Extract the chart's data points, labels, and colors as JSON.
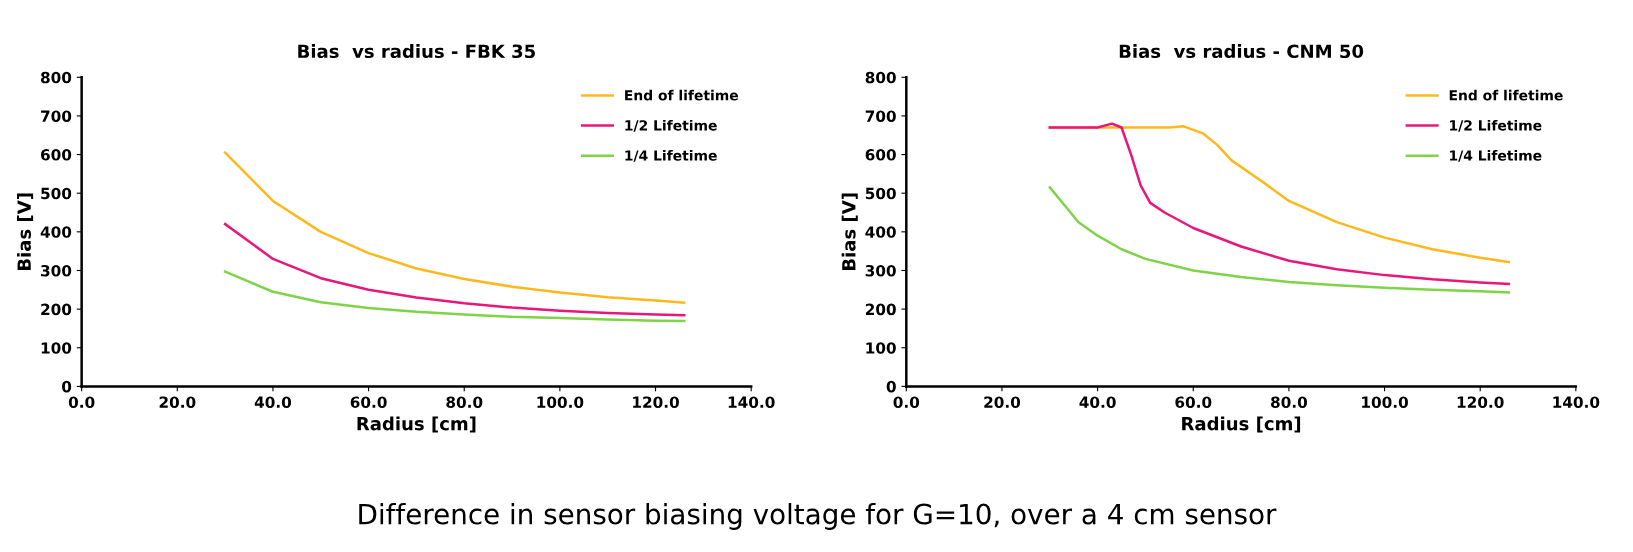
{
  "chart_data": [
    {
      "type": "line",
      "title": "Bias  vs radius - FBK 35",
      "xlabel": "Radius [cm]",
      "ylabel": "Bias [V]",
      "xlim": [
        0,
        140
      ],
      "xticks": [
        {
          "value": 0,
          "label": "0.0"
        },
        {
          "value": 20,
          "label": "20.0"
        },
        {
          "value": 40,
          "label": "40.0"
        },
        {
          "value": 60,
          "label": "60.0"
        },
        {
          "value": 80,
          "label": "80.0"
        },
        {
          "value": 100,
          "label": "100.0"
        },
        {
          "value": 120,
          "label": "120.0"
        },
        {
          "value": 140,
          "label": "140.0"
        }
      ],
      "ylim": [
        0,
        800
      ],
      "yticks": [
        0,
        100,
        200,
        300,
        400,
        500,
        600,
        700,
        800
      ],
      "grid": false,
      "legend": "top right",
      "x": [
        30,
        40,
        50,
        60,
        70,
        80,
        90,
        100,
        110,
        120,
        126
      ],
      "series": [
        {
          "name": "End of lifetime",
          "color": "#ffb81c",
          "values": [
            605,
            480,
            400,
            345,
            305,
            278,
            258,
            243,
            231,
            222,
            217
          ]
        },
        {
          "name": "1/2 Lifetime",
          "color": "#e8177a",
          "values": [
            420,
            330,
            280,
            250,
            230,
            215,
            204,
            196,
            190,
            186,
            184
          ]
        },
        {
          "name": "1/4 Lifetime",
          "color": "#7ed348",
          "values": [
            297,
            245,
            218,
            203,
            193,
            186,
            180,
            177,
            173,
            170,
            169
          ]
        }
      ]
    },
    {
      "type": "line",
      "title": "Bias  vs radius - CNM 50",
      "xlabel": "Radius [cm]",
      "ylabel": "Bias [V]",
      "xlim": [
        0,
        140
      ],
      "xticks": [
        {
          "value": 0,
          "label": "0.0"
        },
        {
          "value": 20,
          "label": "20.0"
        },
        {
          "value": 40,
          "label": "40.0"
        },
        {
          "value": 60,
          "label": "60.0"
        },
        {
          "value": 80,
          "label": "80.0"
        },
        {
          "value": 100,
          "label": "100.0"
        },
        {
          "value": 120,
          "label": "120.0"
        },
        {
          "value": 140,
          "label": "140.0"
        }
      ],
      "ylim": [
        0,
        800
      ],
      "yticks": [
        0,
        100,
        200,
        300,
        400,
        500,
        600,
        700,
        800
      ],
      "grid": false,
      "legend": "top right",
      "annotations": [
        "Difference in sensor biasing voltage for G=10, over a 4 cm sensor"
      ],
      "series": [
        {
          "name": "End of lifetime",
          "color": "#ffb81c",
          "x": [
            30,
            40,
            50,
            55,
            58,
            62,
            65,
            68,
            75,
            80,
            90,
            100,
            110,
            120,
            126
          ],
          "values": [
            670,
            670,
            670,
            670,
            673,
            655,
            625,
            585,
            525,
            480,
            425,
            385,
            355,
            333,
            322
          ]
        },
        {
          "name": "1/2 Lifetime",
          "color": "#e8177a",
          "x": [
            30,
            40,
            43,
            45,
            47,
            49,
            51,
            54,
            60,
            70,
            80,
            90,
            100,
            110,
            120,
            126
          ],
          "values": [
            670,
            670,
            680,
            670,
            600,
            520,
            475,
            450,
            410,
            362,
            325,
            303,
            288,
            277,
            269,
            265
          ]
        },
        {
          "name": "1/4 Lifetime",
          "color": "#7ed348",
          "x": [
            30,
            33,
            36,
            40,
            45,
            50,
            60,
            70,
            80,
            90,
            100,
            110,
            120,
            126
          ],
          "values": [
            515,
            470,
            425,
            390,
            355,
            330,
            300,
            283,
            270,
            262,
            255,
            250,
            246,
            243
          ]
        }
      ]
    }
  ]
}
